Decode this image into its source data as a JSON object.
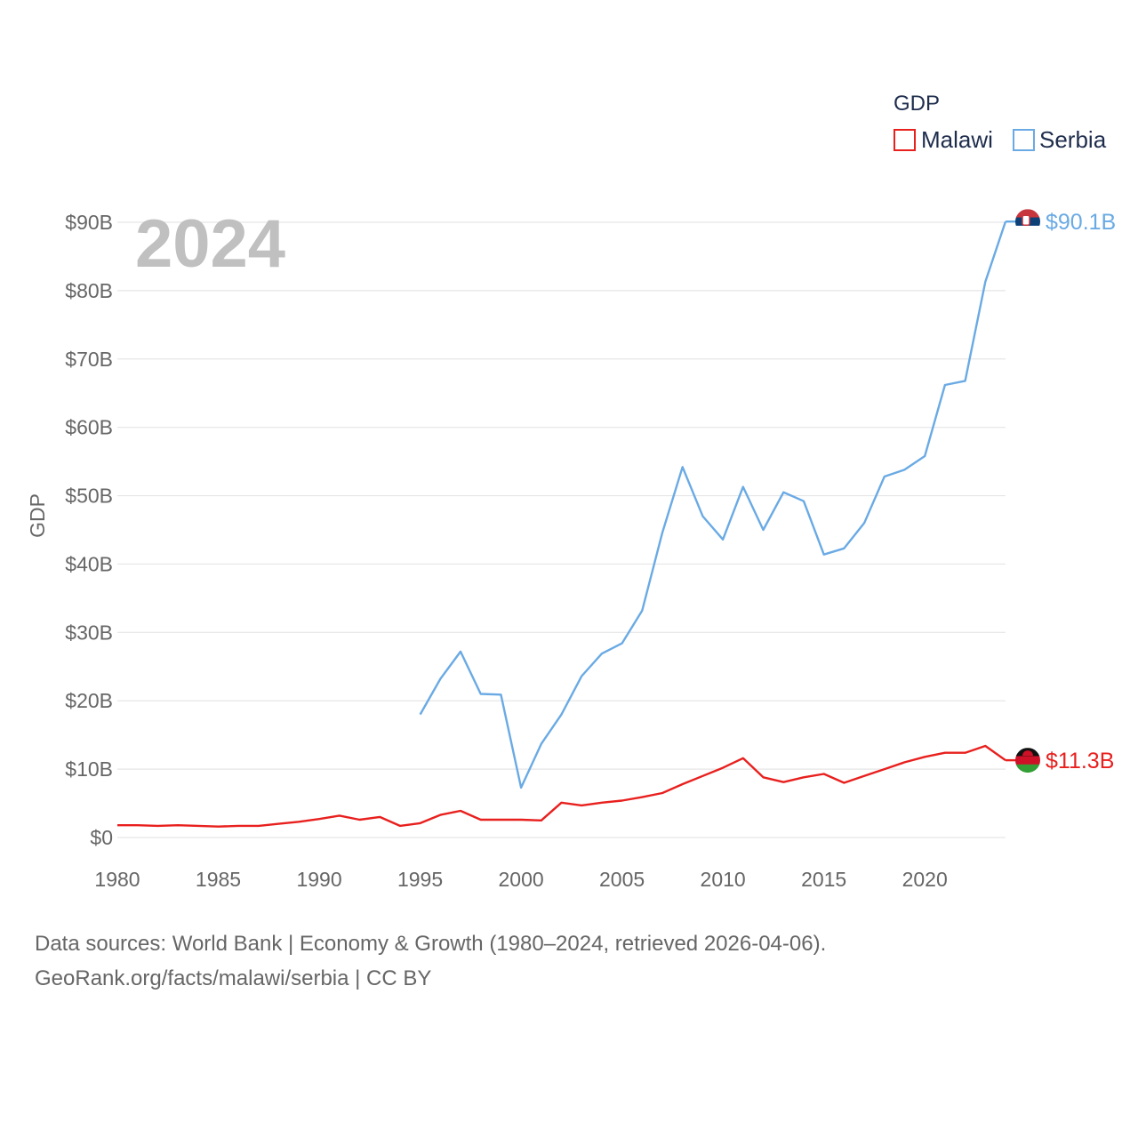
{
  "chart_data": {
    "type": "line",
    "year_label": "2024",
    "ylabel": "GDP",
    "xlabel": "",
    "xlim": [
      1980,
      2024
    ],
    "ylim": [
      0,
      90
    ],
    "x_ticks": [
      1980,
      1985,
      1990,
      1995,
      2000,
      2005,
      2010,
      2015,
      2020
    ],
    "x_tick_labels": [
      "1980",
      "1985",
      "1990",
      "1995",
      "2000",
      "2005",
      "2010",
      "2015",
      "2020"
    ],
    "y_ticks": [
      0,
      10,
      20,
      30,
      40,
      50,
      60,
      70,
      80,
      90
    ],
    "y_tick_labels": [
      "$0",
      "$10B",
      "$20B",
      "$30B",
      "$40B",
      "$50B",
      "$60B",
      "$70B",
      "$80B",
      "$90B"
    ],
    "grid": true,
    "legend": {
      "title": "GDP",
      "position": "top-right",
      "entries": [
        "Malawi",
        "Serbia"
      ]
    },
    "series": [
      {
        "name": "Malawi",
        "color": "#e8201e",
        "end_label": "$11.3B",
        "flag_icon": "malawi-flag-icon",
        "x": [
          1980,
          1981,
          1982,
          1983,
          1984,
          1985,
          1986,
          1987,
          1988,
          1989,
          1990,
          1991,
          1992,
          1993,
          1994,
          1995,
          1996,
          1997,
          1998,
          1999,
          2000,
          2001,
          2002,
          2003,
          2004,
          2005,
          2006,
          2007,
          2008,
          2009,
          2010,
          2011,
          2012,
          2013,
          2014,
          2015,
          2016,
          2017,
          2018,
          2019,
          2020,
          2021,
          2022,
          2023,
          2024
        ],
        "values": [
          1.8,
          1.8,
          1.7,
          1.8,
          1.7,
          1.6,
          1.7,
          1.7,
          2.0,
          2.3,
          2.7,
          3.2,
          2.6,
          3.0,
          1.7,
          2.1,
          3.3,
          3.9,
          2.6,
          2.6,
          2.6,
          2.5,
          5.1,
          4.7,
          5.1,
          5.4,
          5.9,
          6.5,
          7.8,
          9.0,
          10.2,
          11.6,
          8.8,
          8.1,
          8.8,
          9.3,
          8.0,
          9.0,
          10.0,
          11.0,
          11.8,
          12.4,
          12.4,
          13.4,
          11.3
        ]
      },
      {
        "name": "Serbia",
        "color": "#6aaae4",
        "end_label": "$90.1B",
        "flag_icon": "serbia-flag-icon",
        "x": [
          1995,
          1996,
          1997,
          1998,
          1999,
          2000,
          2001,
          2002,
          2003,
          2004,
          2005,
          2006,
          2007,
          2008,
          2009,
          2010,
          2011,
          2012,
          2013,
          2014,
          2015,
          2016,
          2017,
          2018,
          2019,
          2020,
          2021,
          2022,
          2023,
          2024
        ],
        "values": [
          18.0,
          23.2,
          27.2,
          21.0,
          20.9,
          7.3,
          13.7,
          18.0,
          23.6,
          26.9,
          28.4,
          33.2,
          44.6,
          54.2,
          47.0,
          43.6,
          51.3,
          45.0,
          50.5,
          49.2,
          41.4,
          42.3,
          46.0,
          52.8,
          53.8,
          55.8,
          66.2,
          66.8,
          81.3,
          90.1
        ]
      }
    ]
  },
  "footer": {
    "line1": "Data sources: World Bank | Economy & Growth (1980–2024, retrieved 2026-04-06).",
    "line2": "GeoRank.org/facts/malawi/serbia | CC BY"
  }
}
